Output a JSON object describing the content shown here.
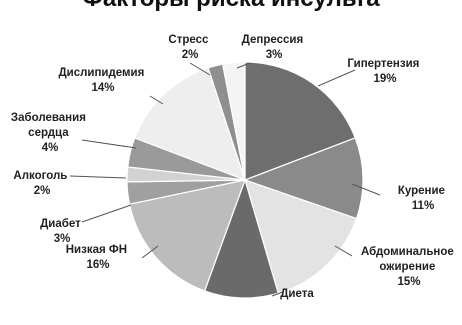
{
  "chart_data": {
    "type": "pie",
    "title": "Факторы риска инсульта",
    "start_angle_deg": 0,
    "direction": "clockwise",
    "slices": [
      {
        "label": "Гипертензия",
        "value": 19,
        "value_label": "19%",
        "color": "#6e6e6e"
      },
      {
        "label": "Курение",
        "value": 11,
        "value_label": "11%",
        "color": "#8a8a8a"
      },
      {
        "label": "Абдоминальное ожирение",
        "value": 15,
        "value_label": "15%",
        "color": "#e3e3e3"
      },
      {
        "label": "Диета",
        "value": 10,
        "value_label": "",
        "color": "#6a6a6a"
      },
      {
        "label": "Низкая ФН",
        "value": 16,
        "value_label": "16%",
        "color": "#bcbcbc"
      },
      {
        "label": "Диабет",
        "value": 3,
        "value_label": "3%",
        "color": "#a0a0a0"
      },
      {
        "label": "Алкоголь",
        "value": 2,
        "value_label": "2%",
        "color": "#d2d2d2"
      },
      {
        "label": "Заболевания сердца",
        "value": 4,
        "value_label": "4%",
        "color": "#9a9a9a"
      },
      {
        "label": "Дислипидемия",
        "value": 14,
        "value_label": "14%",
        "color": "#eeeeee"
      },
      {
        "label": "Стресс",
        "value": 2,
        "value_label": "2%",
        "color": "#8f8f8f"
      },
      {
        "label": "Депрессия",
        "value": 3,
        "value_label": "3%",
        "color": "#f4f4f4"
      }
    ]
  }
}
